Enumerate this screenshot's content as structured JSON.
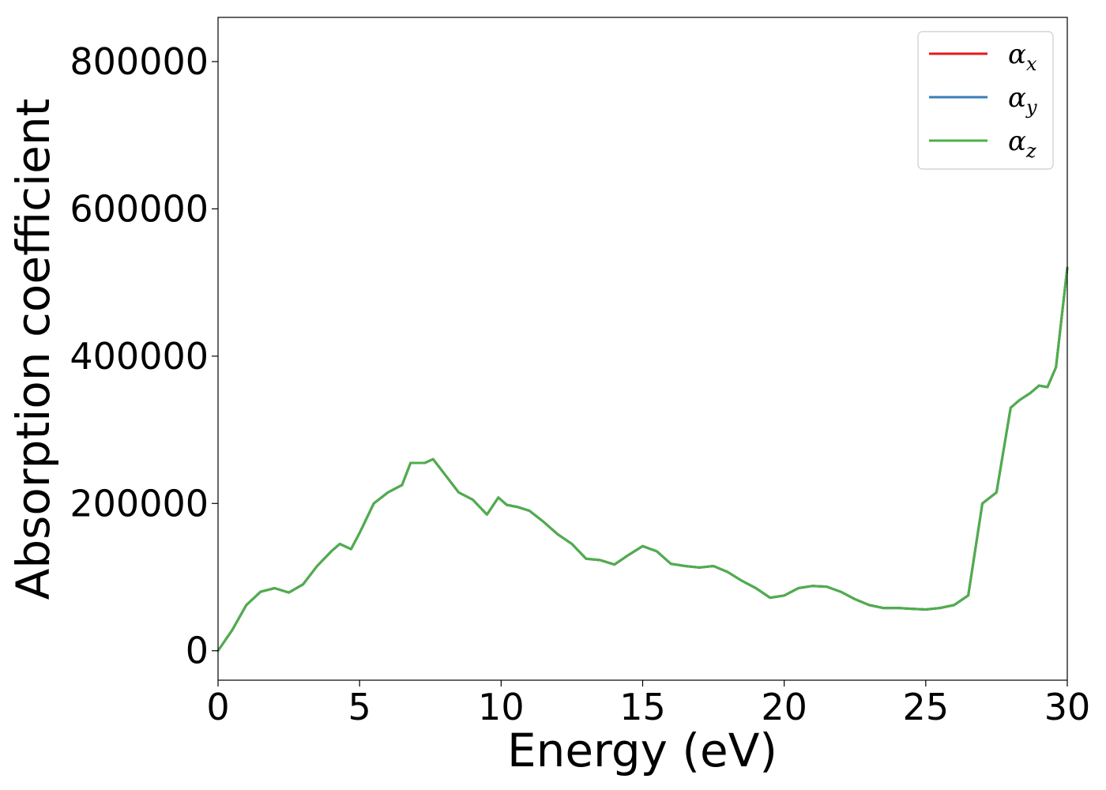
{
  "chart_data": {
    "type": "line",
    "xlabel": "Energy (eV)",
    "ylabel": "Absorption coefficient",
    "xlim": [
      0,
      30
    ],
    "ylim": [
      -40000,
      860000
    ],
    "xticks": [
      0,
      5,
      10,
      15,
      20,
      25,
      30
    ],
    "xtick_labels": [
      "0",
      "5",
      "10",
      "15",
      "20",
      "25",
      "30"
    ],
    "yticks": [
      0,
      200000,
      400000,
      600000,
      800000
    ],
    "ytick_labels": [
      "0",
      "200000",
      "400000",
      "600000",
      "800000"
    ],
    "grid": false,
    "legend_position": "top-right",
    "x": [
      0,
      0.5,
      1.0,
      1.5,
      2.0,
      2.5,
      3.0,
      3.5,
      4.0,
      4.3,
      4.7,
      5.0,
      5.5,
      6.0,
      6.5,
      6.8,
      7.3,
      7.6,
      8.0,
      8.5,
      9.0,
      9.5,
      9.9,
      10.2,
      10.6,
      11.0,
      11.5,
      12.0,
      12.5,
      13.0,
      13.5,
      14.0,
      14.5,
      15.0,
      15.5,
      16.0,
      16.5,
      17.0,
      17.5,
      18.0,
      18.5,
      19.0,
      19.5,
      20.0,
      20.5,
      21.0,
      21.5,
      22.0,
      22.5,
      23.0,
      23.5,
      24.0,
      24.5,
      25.0,
      25.5,
      26.0,
      26.5,
      27.0,
      27.5,
      28.0,
      28.3,
      28.7,
      29.0,
      29.3,
      29.6,
      30.0
    ],
    "series": [
      {
        "name": "αx",
        "name_base": "α",
        "name_sub": "x",
        "color": "#e41a1c",
        "y": [
          0,
          28000,
          62000,
          80000,
          85000,
          79000,
          90000,
          115000,
          135000,
          145000,
          138000,
          160000,
          200000,
          215000,
          225000,
          255000,
          255000,
          260000,
          240000,
          215000,
          205000,
          185000,
          208000,
          198000,
          195000,
          190000,
          175000,
          158000,
          145000,
          125000,
          123000,
          117000,
          130000,
          142000,
          135000,
          118000,
          115000,
          113000,
          115000,
          107000,
          95000,
          85000,
          72000,
          75000,
          85000,
          88000,
          87000,
          80000,
          70000,
          62000,
          58000,
          58000,
          57000,
          56000,
          58000,
          62000,
          75000,
          200000,
          215000,
          330000,
          340000,
          350000,
          360000,
          358000,
          385000,
          520000
        ]
      },
      {
        "name": "αy",
        "name_base": "α",
        "name_sub": "y",
        "color": "#377eb8",
        "y": [
          0,
          28000,
          62000,
          80000,
          85000,
          79000,
          90000,
          115000,
          135000,
          145000,
          138000,
          160000,
          200000,
          215000,
          225000,
          255000,
          255000,
          260000,
          240000,
          215000,
          205000,
          185000,
          208000,
          198000,
          195000,
          190000,
          175000,
          158000,
          145000,
          125000,
          123000,
          117000,
          130000,
          142000,
          135000,
          118000,
          115000,
          113000,
          115000,
          107000,
          95000,
          85000,
          72000,
          75000,
          85000,
          88000,
          87000,
          80000,
          70000,
          62000,
          58000,
          58000,
          57000,
          56000,
          58000,
          62000,
          75000,
          200000,
          215000,
          330000,
          340000,
          350000,
          360000,
          358000,
          385000,
          520000
        ]
      },
      {
        "name": "αz",
        "name_base": "α",
        "name_sub": "z",
        "color": "#4daf4a",
        "y": [
          0,
          28000,
          62000,
          80000,
          85000,
          79000,
          90000,
          115000,
          135000,
          145000,
          138000,
          160000,
          200000,
          215000,
          225000,
          255000,
          255000,
          260000,
          240000,
          215000,
          205000,
          185000,
          208000,
          198000,
          195000,
          190000,
          175000,
          158000,
          145000,
          125000,
          123000,
          117000,
          130000,
          142000,
          135000,
          118000,
          115000,
          113000,
          115000,
          107000,
          95000,
          85000,
          72000,
          75000,
          85000,
          88000,
          87000,
          80000,
          70000,
          62000,
          58000,
          58000,
          57000,
          56000,
          58000,
          62000,
          75000,
          200000,
          215000,
          330000,
          340000,
          350000,
          360000,
          358000,
          385000,
          520000
        ]
      }
    ]
  }
}
